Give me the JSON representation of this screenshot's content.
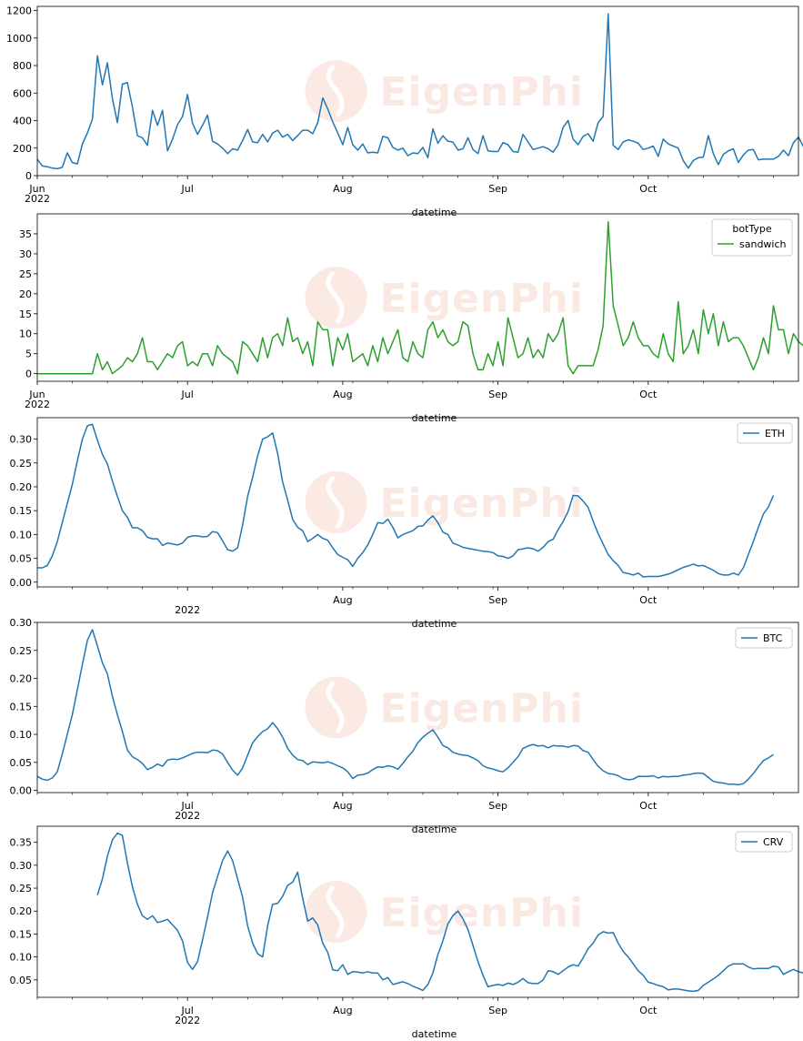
{
  "page": {
    "background": "#ffffff"
  },
  "watermark": {
    "text": "EigenPhi",
    "color": "#f6d7cc"
  },
  "chart_data": [
    {
      "type": "line",
      "x_type": "date",
      "xlim": [
        "2022-06-01",
        "2022-10-31"
      ],
      "ylim": [
        0,
        1230
      ],
      "yticks": [
        0,
        200,
        400,
        600,
        800,
        1000,
        1200
      ],
      "xticks": [
        {
          "date": "2022-06-01",
          "label": "Jun",
          "sublabel": "2022"
        },
        {
          "date": "2022-07-01",
          "label": "Jul"
        },
        {
          "date": "2022-08-01",
          "label": "Aug"
        },
        {
          "date": "2022-09-01",
          "label": "Sep"
        },
        {
          "date": "2022-10-01",
          "label": "Oct"
        }
      ],
      "xlabel": "datetime",
      "legend": null,
      "series": [
        {
          "color": "#1f77b4",
          "x_start": "2022-06-01",
          "values": [
            120,
            70,
            65,
            55,
            50,
            60,
            165,
            95,
            85,
            230,
            310,
            410,
            870,
            660,
            820,
            560,
            385,
            665,
            675,
            500,
            290,
            275,
            220,
            475,
            365,
            475,
            180,
            265,
            370,
            430,
            590,
            380,
            300,
            365,
            440,
            250,
            230,
            200,
            160,
            195,
            185,
            255,
            335,
            245,
            240,
            300,
            245,
            310,
            330,
            280,
            300,
            255,
            290,
            330,
            330,
            305,
            385,
            565,
            485,
            390,
            310,
            225,
            350,
            225,
            185,
            230,
            165,
            170,
            165,
            285,
            275,
            205,
            185,
            200,
            145,
            165,
            160,
            205,
            130,
            340,
            235,
            290,
            250,
            245,
            185,
            195,
            275,
            190,
            160,
            290,
            180,
            175,
            175,
            240,
            225,
            175,
            170,
            300,
            245,
            190,
            200,
            210,
            195,
            170,
            225,
            350,
            400,
            265,
            225,
            285,
            305,
            250,
            385,
            430,
            1175,
            220,
            190,
            245,
            260,
            250,
            235,
            190,
            200,
            215,
            140,
            265,
            230,
            215,
            200,
            110,
            55,
            110,
            130,
            135,
            290,
            160,
            80,
            155,
            180,
            195,
            95,
            150,
            185,
            190,
            115,
            120,
            120,
            120,
            140,
            185,
            145,
            240,
            280,
            210,
            175,
            260,
            160,
            195
          ]
        }
      ]
    },
    {
      "type": "line",
      "x_type": "date",
      "xlim": [
        "2022-06-01",
        "2022-10-31"
      ],
      "ylim": [
        -1.9,
        40
      ],
      "yticks": [
        0,
        5,
        10,
        15,
        20,
        25,
        30,
        35
      ],
      "xticks": [
        {
          "date": "2022-06-01",
          "label": "Jun",
          "sublabel": "2022"
        },
        {
          "date": "2022-07-01",
          "label": "Jul"
        },
        {
          "date": "2022-08-01",
          "label": "Aug"
        },
        {
          "date": "2022-09-01",
          "label": "Sep"
        },
        {
          "date": "2022-10-01",
          "label": "Oct"
        }
      ],
      "xlabel": "datetime",
      "legend": {
        "title": "botType",
        "location": "upper right"
      },
      "series": [
        {
          "name": "sandwich",
          "color": "#2ca02c",
          "x_start": "2022-06-01",
          "values": [
            0,
            0,
            0,
            0,
            0,
            0,
            0,
            0,
            0,
            0,
            0,
            0,
            5,
            1,
            3,
            0,
            1,
            2,
            4,
            3,
            5,
            9,
            3,
            3,
            1,
            3,
            5,
            4,
            7,
            8,
            2,
            3,
            2,
            5,
            5,
            2,
            7,
            5,
            4,
            3,
            0,
            8,
            7,
            5,
            3,
            9,
            4,
            9,
            10,
            7,
            14,
            8,
            9,
            5,
            8,
            2,
            13,
            11,
            11,
            2,
            9,
            6,
            10,
            3,
            4,
            5,
            2,
            7,
            3,
            9,
            5,
            8,
            11,
            4,
            3,
            8,
            5,
            4,
            11,
            13,
            9,
            11,
            8,
            7,
            8,
            13,
            12,
            5,
            1,
            1,
            5,
            2,
            8,
            2,
            14,
            9,
            4,
            5,
            9,
            4,
            6,
            4,
            10,
            8,
            10,
            14,
            2,
            0,
            2,
            2,
            2,
            2,
            6,
            12,
            38,
            17,
            12,
            7,
            9,
            13,
            9,
            7,
            7,
            5,
            4,
            10,
            5,
            3,
            18,
            5,
            7,
            11,
            5,
            16,
            10,
            15,
            7,
            13,
            8,
            9,
            9,
            7,
            4,
            1,
            4,
            9,
            5,
            17,
            11,
            11,
            5,
            10,
            8,
            7
          ]
        }
      ]
    },
    {
      "type": "line",
      "x_type": "date",
      "xlim": [
        "2022-06-01",
        "2022-10-31"
      ],
      "ylim": [
        -0.01,
        0.345
      ],
      "yticks": [
        0.0,
        0.05,
        0.1,
        0.15,
        0.2,
        0.25,
        0.3
      ],
      "xticks": [
        {
          "date": "2022-07-01",
          "label": "",
          "sublabel": "2022"
        },
        {
          "date": "2022-08-01",
          "label": "Aug"
        },
        {
          "date": "2022-09-01",
          "label": "Sep"
        },
        {
          "date": "2022-10-01",
          "label": "Oct"
        }
      ],
      "xlabel": "datetime",
      "legend": {
        "title": "",
        "location": "upper right"
      },
      "series": [
        {
          "name": "ETH",
          "color": "#1f77b4",
          "x_start": "2022-06-01",
          "values": [
            0.03,
            0.03,
            0.035,
            0.055,
            0.085,
            0.125,
            0.165,
            0.205,
            0.255,
            0.3,
            0.328,
            0.331,
            0.298,
            0.268,
            0.248,
            0.212,
            0.18,
            0.15,
            0.136,
            0.114,
            0.114,
            0.108,
            0.094,
            0.091,
            0.091,
            0.077,
            0.082,
            0.08,
            0.078,
            0.082,
            0.094,
            0.097,
            0.097,
            0.095,
            0.096,
            0.106,
            0.104,
            0.087,
            0.068,
            0.065,
            0.072,
            0.12,
            0.18,
            0.22,
            0.265,
            0.3,
            0.305,
            0.313,
            0.27,
            0.21,
            0.172,
            0.132,
            0.115,
            0.108,
            0.085,
            0.092,
            0.1,
            0.092,
            0.088,
            0.072,
            0.058,
            0.052,
            0.047,
            0.033,
            0.05,
            0.062,
            0.078,
            0.1,
            0.125,
            0.123,
            0.132,
            0.115,
            0.093,
            0.1,
            0.104,
            0.108,
            0.117,
            0.118,
            0.13,
            0.139,
            0.125,
            0.105,
            0.1,
            0.082,
            0.078,
            0.073,
            0.071,
            0.069,
            0.067,
            0.065,
            0.064,
            0.062,
            0.055,
            0.054,
            0.05,
            0.055,
            0.068,
            0.07,
            0.072,
            0.07,
            0.065,
            0.073,
            0.085,
            0.09,
            0.11,
            0.127,
            0.148,
            0.182,
            0.181,
            0.17,
            0.157,
            0.128,
            0.102,
            0.08,
            0.058,
            0.045,
            0.035,
            0.02,
            0.018,
            0.015,
            0.019,
            0.011,
            0.012,
            0.012,
            0.012,
            0.014,
            0.017,
            0.021,
            0.026,
            0.031,
            0.034,
            0.038,
            0.034,
            0.035,
            0.03,
            0.025,
            0.018,
            0.015,
            0.015,
            0.019,
            0.015,
            0.03,
            0.058,
            0.085,
            0.115,
            0.143,
            0.158,
            0.182
          ]
        }
      ]
    },
    {
      "type": "line",
      "x_type": "date",
      "xlim": [
        "2022-06-01",
        "2022-10-31"
      ],
      "ylim": [
        -0.004,
        0.3
      ],
      "yticks": [
        0.0,
        0.05,
        0.1,
        0.15,
        0.2,
        0.25,
        0.3
      ],
      "xticks": [
        {
          "date": "2022-07-01",
          "label": "Jul",
          "sublabel": "2022"
        },
        {
          "date": "2022-08-01",
          "label": "Aug"
        },
        {
          "date": "2022-09-01",
          "label": "Sep"
        },
        {
          "date": "2022-10-01",
          "label": "Oct"
        }
      ],
      "xlabel": "datetime",
      "legend": {
        "title": "",
        "location": "upper right"
      },
      "series": [
        {
          "name": "BTC",
          "color": "#1f77b4",
          "x_start": "2022-06-01",
          "values": [
            0.025,
            0.02,
            0.018,
            0.022,
            0.033,
            0.065,
            0.1,
            0.135,
            0.18,
            0.225,
            0.268,
            0.287,
            0.258,
            0.228,
            0.208,
            0.168,
            0.135,
            0.105,
            0.072,
            0.06,
            0.055,
            0.048,
            0.037,
            0.041,
            0.047,
            0.043,
            0.054,
            0.056,
            0.055,
            0.058,
            0.062,
            0.066,
            0.068,
            0.068,
            0.067,
            0.072,
            0.071,
            0.065,
            0.05,
            0.036,
            0.027,
            0.04,
            0.063,
            0.085,
            0.096,
            0.105,
            0.11,
            0.121,
            0.11,
            0.095,
            0.075,
            0.063,
            0.055,
            0.053,
            0.046,
            0.051,
            0.05,
            0.049,
            0.051,
            0.048,
            0.044,
            0.04,
            0.033,
            0.021,
            0.027,
            0.028,
            0.031,
            0.037,
            0.042,
            0.041,
            0.044,
            0.042,
            0.038,
            0.048,
            0.06,
            0.07,
            0.085,
            0.095,
            0.102,
            0.108,
            0.095,
            0.08,
            0.076,
            0.068,
            0.065,
            0.063,
            0.062,
            0.058,
            0.053,
            0.044,
            0.04,
            0.038,
            0.035,
            0.033,
            0.04,
            0.05,
            0.06,
            0.075,
            0.079,
            0.082,
            0.079,
            0.08,
            0.076,
            0.08,
            0.079,
            0.079,
            0.077,
            0.08,
            0.079,
            0.071,
            0.068,
            0.055,
            0.043,
            0.035,
            0.03,
            0.029,
            0.026,
            0.021,
            0.019,
            0.02,
            0.025,
            0.025,
            0.025,
            0.026,
            0.022,
            0.025,
            0.024,
            0.025,
            0.025,
            0.027,
            0.028,
            0.03,
            0.031,
            0.03,
            0.023,
            0.016,
            0.014,
            0.013,
            0.011,
            0.011,
            0.01,
            0.012,
            0.02,
            0.03,
            0.042,
            0.053,
            0.058,
            0.064
          ]
        }
      ]
    },
    {
      "type": "line",
      "x_type": "date",
      "xlim": [
        "2022-06-01",
        "2022-10-31"
      ],
      "ylim": [
        0.012,
        0.385
      ],
      "yticks": [
        0.05,
        0.1,
        0.15,
        0.2,
        0.25,
        0.3,
        0.35
      ],
      "xticks": [
        {
          "date": "2022-07-01",
          "label": "Jul",
          "sublabel": "2022"
        },
        {
          "date": "2022-08-01",
          "label": "Aug"
        },
        {
          "date": "2022-09-01",
          "label": "Sep"
        },
        {
          "date": "2022-10-01",
          "label": "Oct"
        }
      ],
      "xlabel": "datetime",
      "legend": {
        "title": "",
        "location": "upper right"
      },
      "series": [
        {
          "name": "CRV",
          "color": "#1f77b4",
          "x_start": "2022-06-13",
          "values": [
            0.235,
            0.27,
            0.32,
            0.355,
            0.37,
            0.365,
            0.305,
            0.253,
            0.215,
            0.19,
            0.182,
            0.19,
            0.175,
            0.178,
            0.182,
            0.17,
            0.158,
            0.135,
            0.088,
            0.073,
            0.09,
            0.137,
            0.187,
            0.24,
            0.275,
            0.31,
            0.331,
            0.31,
            0.27,
            0.23,
            0.168,
            0.13,
            0.107,
            0.1,
            0.168,
            0.215,
            0.217,
            0.232,
            0.256,
            0.263,
            0.285,
            0.228,
            0.178,
            0.185,
            0.17,
            0.13,
            0.11,
            0.072,
            0.07,
            0.083,
            0.062,
            0.068,
            0.067,
            0.065,
            0.068,
            0.065,
            0.065,
            0.05,
            0.055,
            0.04,
            0.043,
            0.046,
            0.042,
            0.036,
            0.032,
            0.027,
            0.04,
            0.065,
            0.105,
            0.135,
            0.172,
            0.19,
            0.2,
            0.183,
            0.16,
            0.125,
            0.09,
            0.06,
            0.035,
            0.038,
            0.04,
            0.038,
            0.043,
            0.04,
            0.045,
            0.053,
            0.044,
            0.042,
            0.042,
            0.05,
            0.07,
            0.068,
            0.062,
            0.07,
            0.078,
            0.083,
            0.08,
            0.098,
            0.118,
            0.13,
            0.148,
            0.155,
            0.152,
            0.153,
            0.13,
            0.112,
            0.1,
            0.085,
            0.07,
            0.06,
            0.045,
            0.042,
            0.038,
            0.035,
            0.028,
            0.03,
            0.03,
            0.028,
            0.026,
            0.025,
            0.027,
            0.038,
            0.045,
            0.052,
            0.06,
            0.07,
            0.08,
            0.085,
            0.085,
            0.085,
            0.078,
            0.074,
            0.075,
            0.075,
            0.075,
            0.08,
            0.078,
            0.062,
            0.068,
            0.073,
            0.068,
            0.065,
            0.063,
            0.048,
            0.046
          ]
        }
      ]
    }
  ]
}
